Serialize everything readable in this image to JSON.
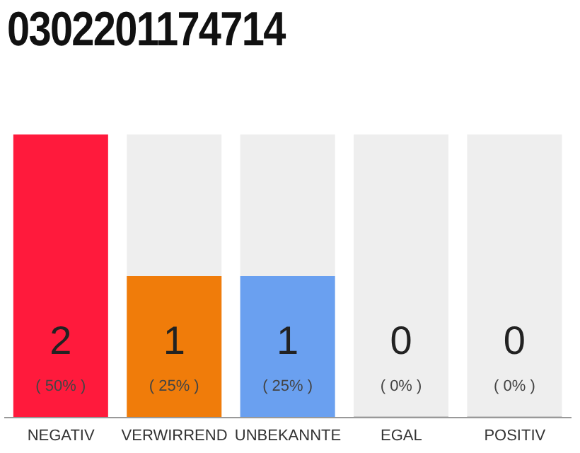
{
  "chart_data": {
    "type": "bar",
    "title": "0302201174714",
    "categories": [
      "NEGATIV",
      "VERWIRREND",
      "UNBEKANNTE",
      "EGAL",
      "POSITIV"
    ],
    "values": [
      2,
      1,
      1,
      0,
      0
    ],
    "colors": [
      "#ff1a3c",
      "#f07c0a",
      "#6aa0f0",
      "#cccccc",
      "#cccccc"
    ],
    "value_labels": [
      "2\n( 50% )",
      "1\n( 25% )",
      "1\n( 25% )",
      "0\n( 0% )",
      "0\n( 0% )"
    ],
    "grid": false,
    "legend": false
  }
}
